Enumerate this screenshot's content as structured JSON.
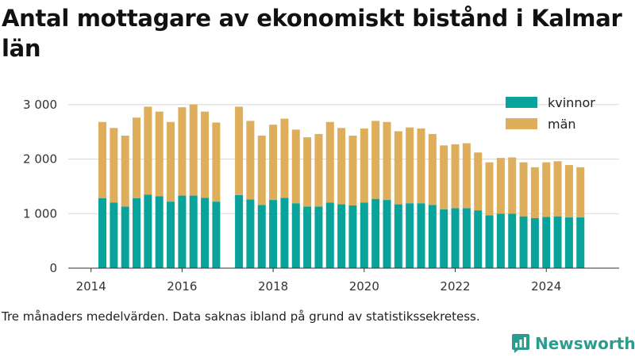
{
  "title": "Antal mottagare av ekonomiskt bistånd i Kalmar län",
  "footnote": "Tre månaders medelvärden. Data saknas ibland på grund av statistikssekretess.",
  "brand": {
    "name": "Newsworthy",
    "icon": "bar-chart-logo-icon",
    "color": "#2a9d8f"
  },
  "chart_data": {
    "type": "bar",
    "stacked": true,
    "x_tick_labels": [
      "2014",
      "2016",
      "2018",
      "2020",
      "2022",
      "2024"
    ],
    "x_tick_positions": [
      2014,
      2016,
      2018,
      2020,
      2022,
      2024
    ],
    "xlim": [
      2013.5,
      2025.6
    ],
    "y_tick_labels": [
      "0",
      "1 000",
      "2 000",
      "3 000"
    ],
    "y_tick_values": [
      0,
      1000,
      2000,
      3000
    ],
    "ylim": [
      0,
      3200
    ],
    "grid": true,
    "legend_position": "top-right",
    "x": [
      2014.25,
      2014.5,
      2014.75,
      2015.0,
      2015.25,
      2015.5,
      2015.75,
      2016.0,
      2016.25,
      2016.5,
      2016.75,
      2017.25,
      2017.5,
      2017.75,
      2018.0,
      2018.25,
      2018.5,
      2018.75,
      2019.0,
      2019.25,
      2019.5,
      2019.75,
      2020.0,
      2020.25,
      2020.5,
      2020.75,
      2021.0,
      2021.25,
      2021.5,
      2021.75,
      2022.0,
      2022.25,
      2022.5,
      2022.75,
      2023.0,
      2023.25,
      2023.5,
      2023.75,
      2024.0,
      2024.25,
      2024.5,
      2024.75
    ],
    "series": [
      {
        "name": "kvinnor",
        "color": "#0aa39c",
        "values": [
          1280,
          1200,
          1130,
          1280,
          1350,
          1320,
          1220,
          1330,
          1330,
          1290,
          1220,
          1340,
          1260,
          1160,
          1250,
          1290,
          1190,
          1130,
          1130,
          1200,
          1170,
          1150,
          1200,
          1270,
          1250,
          1170,
          1190,
          1190,
          1160,
          1080,
          1100,
          1100,
          1060,
          970,
          1000,
          1000,
          950,
          920,
          940,
          950,
          930,
          930
        ]
      },
      {
        "name": "män",
        "color": "#deae5a",
        "values": [
          1400,
          1370,
          1300,
          1480,
          1610,
          1550,
          1460,
          1620,
          1670,
          1580,
          1450,
          1620,
          1440,
          1270,
          1380,
          1450,
          1350,
          1270,
          1330,
          1480,
          1400,
          1280,
          1360,
          1430,
          1430,
          1340,
          1390,
          1370,
          1300,
          1170,
          1170,
          1190,
          1060,
          970,
          1020,
          1030,
          990,
          930,
          1000,
          1010,
          960,
          920
        ]
      }
    ]
  }
}
